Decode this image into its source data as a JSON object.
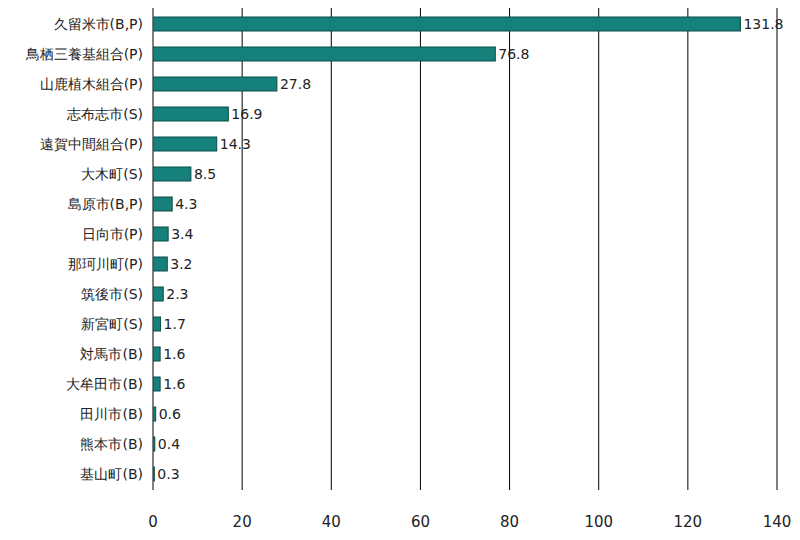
{
  "chart_data": {
    "type": "bar",
    "orientation": "horizontal",
    "categories": [
      "久留米市(B,P)",
      "鳥栖三養基組合(P)",
      "山鹿植木組合(P)",
      "志布志市(S)",
      "遠賀中間組合(P)",
      "大木町(S)",
      "島原市(B,P)",
      "日向市(P)",
      "那珂川町(P)",
      "筑後市(S)",
      "新宮町(S)",
      "対馬市(B)",
      "大牟田市(B)",
      "田川市(B)",
      "熊本市(B)",
      "基山町(B)"
    ],
    "values": [
      131.8,
      76.8,
      27.8,
      16.9,
      14.3,
      8.5,
      4.3,
      3.4,
      3.2,
      2.3,
      1.7,
      1.6,
      1.6,
      0.6,
      0.4,
      0.3
    ],
    "color": "#16807a",
    "xlim": [
      0,
      140
    ],
    "xticks": [
      0,
      20,
      40,
      60,
      80,
      100,
      120,
      140
    ],
    "grid": true,
    "data_labels": true
  }
}
